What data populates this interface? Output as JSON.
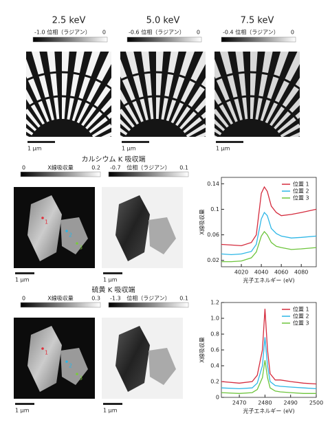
{
  "energy_panels": [
    {
      "title": "2.5 keV",
      "cbar_min": "-1.0",
      "cbar_label": "位相（ラジアン）",
      "cbar_max": "0",
      "scale": "1 μm"
    },
    {
      "title": "5.0 keV",
      "cbar_min": "-0.6",
      "cbar_label": "位相（ラジアン）",
      "cbar_max": "0",
      "scale": "1 μm"
    },
    {
      "title": "7.5 keV",
      "cbar_min": "-0.4",
      "cbar_label": "位相（ラジアン）",
      "cbar_max": "0",
      "scale": "1 μm"
    }
  ],
  "edges": [
    {
      "title": "カルシウム K 吸収端",
      "absorption_bar": {
        "min": "0",
        "label": "X線吸収量",
        "max": "0.2"
      },
      "phase_bar": {
        "min": "-0.7",
        "label": "位相（ラジアン）",
        "max": "0.1"
      },
      "scale": "1 μm",
      "points": [
        "1",
        "2",
        "3"
      ]
    },
    {
      "title": "硫黄 K 吸収端",
      "absorption_bar": {
        "min": "0",
        "label": "X線吸収量",
        "max": "0.3"
      },
      "phase_bar": {
        "min": "-1.3",
        "label": "位相（ラジアン）",
        "max": "0.1"
      },
      "scale": "1 μm",
      "points": [
        "1",
        "2",
        "3"
      ]
    }
  ],
  "chart_data": [
    {
      "type": "line",
      "x_label": "光子エネルギー (eV)",
      "y_label": "X線吸収量",
      "x": [
        4000,
        4010,
        4020,
        4030,
        4035,
        4040,
        4043,
        4046,
        4050,
        4055,
        4060,
        4070,
        4080,
        4095
      ],
      "series": [
        {
          "name": "位置 1",
          "color": "#d42a3c",
          "values": [
            0.045,
            0.044,
            0.043,
            0.048,
            0.06,
            0.125,
            0.135,
            0.128,
            0.105,
            0.095,
            0.09,
            0.092,
            0.095,
            0.1
          ]
        },
        {
          "name": "位置 2",
          "color": "#2bb6e6",
          "values": [
            0.03,
            0.029,
            0.03,
            0.034,
            0.045,
            0.085,
            0.095,
            0.09,
            0.07,
            0.062,
            0.058,
            0.055,
            0.056,
            0.058
          ]
        },
        {
          "name": "位置 3",
          "color": "#6cc43a",
          "values": [
            0.018,
            0.018,
            0.019,
            0.024,
            0.033,
            0.058,
            0.065,
            0.06,
            0.048,
            0.042,
            0.04,
            0.037,
            0.038,
            0.04
          ]
        }
      ],
      "xlim": [
        4000,
        4095
      ],
      "xticks": [
        4020,
        4040,
        4060,
        4080
      ],
      "ylim": [
        0.01,
        0.15
      ],
      "yticks": [
        0.02,
        0.06,
        0.1,
        0.14
      ],
      "legend": "upper-right"
    },
    {
      "type": "line",
      "x_label": "光子エネルギー (eV)",
      "y_label": "X線吸収量",
      "x": [
        2463,
        2470,
        2475,
        2477,
        2479,
        2480,
        2481,
        2482,
        2484,
        2486,
        2490,
        2495,
        2500
      ],
      "series": [
        {
          "name": "位置 1",
          "color": "#d42a3c",
          "values": [
            0.2,
            0.18,
            0.2,
            0.28,
            0.6,
            1.12,
            0.6,
            0.3,
            0.22,
            0.22,
            0.2,
            0.18,
            0.17
          ]
        },
        {
          "name": "位置 2",
          "color": "#2bb6e6",
          "values": [
            0.12,
            0.11,
            0.12,
            0.18,
            0.4,
            0.76,
            0.4,
            0.2,
            0.15,
            0.14,
            0.13,
            0.12,
            0.11
          ]
        },
        {
          "name": "位置 3",
          "color": "#6cc43a",
          "values": [
            0.06,
            0.05,
            0.06,
            0.1,
            0.25,
            0.47,
            0.25,
            0.12,
            0.08,
            0.07,
            0.06,
            0.05,
            0.05
          ]
        }
      ],
      "xlim": [
        2463,
        2500
      ],
      "xticks": [
        2470,
        2480,
        2490,
        2500
      ],
      "ylim": [
        0,
        1.2
      ],
      "yticks": [
        0,
        {
          "value": 0.2,
          "label": "0.2"
        },
        {
          "value": 0.4,
          "label": "0.4"
        },
        {
          "value": 0.6,
          "label": "0.6"
        },
        {
          "value": 0.8,
          "label": "0.8"
        },
        {
          "value": 1.0,
          "label": "1.0"
        },
        {
          "value": 1.2,
          "label": "1.2"
        }
      ],
      "legend": "upper-right"
    }
  ]
}
